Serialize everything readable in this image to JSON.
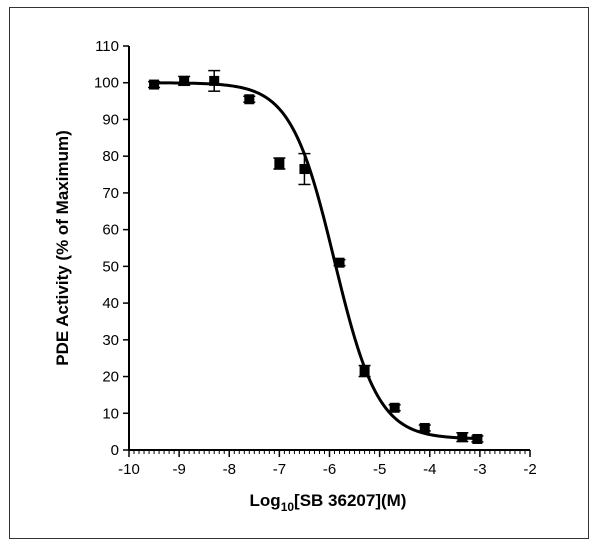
{
  "chart_data": {
    "type": "scatter",
    "title": "",
    "xlabel": {
      "prefix": "Log",
      "subscript": "10",
      "suffix": "[SB 36207](M)"
    },
    "ylabel": "PDE  Activity (% of Maximum)",
    "xlim": [
      -10,
      -2
    ],
    "ylim": [
      0,
      110
    ],
    "x_ticks": [
      -10,
      -9,
      -8,
      -7,
      -6,
      -5,
      -4,
      -3,
      -2
    ],
    "y_ticks": [
      0,
      10,
      20,
      30,
      40,
      50,
      60,
      70,
      80,
      90,
      100,
      110
    ],
    "grid": false,
    "legend": "none",
    "colors": {
      "marker": "#000000",
      "curve": "#000000",
      "axis": "#000000"
    },
    "series": [
      {
        "marker": "square",
        "points": [
          {
            "x": -9.5,
            "y": 99.5,
            "err": 0.8
          },
          {
            "x": -8.9,
            "y": 100.5,
            "err": 1.2
          },
          {
            "x": -8.3,
            "y": 100.5,
            "err": 2.8
          },
          {
            "x": -7.6,
            "y": 95.5,
            "err": 0.8
          },
          {
            "x": -7.0,
            "y": 78.0,
            "err": 1.5
          },
          {
            "x": -6.5,
            "y": 76.5,
            "err": 4.2
          },
          {
            "x": -5.8,
            "y": 51.0,
            "err": 0.8
          },
          {
            "x": -5.3,
            "y": 21.5,
            "err": 1.5
          },
          {
            "x": -4.7,
            "y": 11.5,
            "err": 0.8
          },
          {
            "x": -4.1,
            "y": 6.0,
            "err": 0.8
          },
          {
            "x": -3.35,
            "y": 3.5,
            "err": 1.2
          },
          {
            "x": -3.05,
            "y": 3.0,
            "err": 0.8
          }
        ]
      }
    ],
    "fit_curve": {
      "model": "sigmoidal dose-response",
      "bottom": 3,
      "top": 100,
      "log_ic50": -5.9,
      "hill_slope": -1.0
    }
  }
}
